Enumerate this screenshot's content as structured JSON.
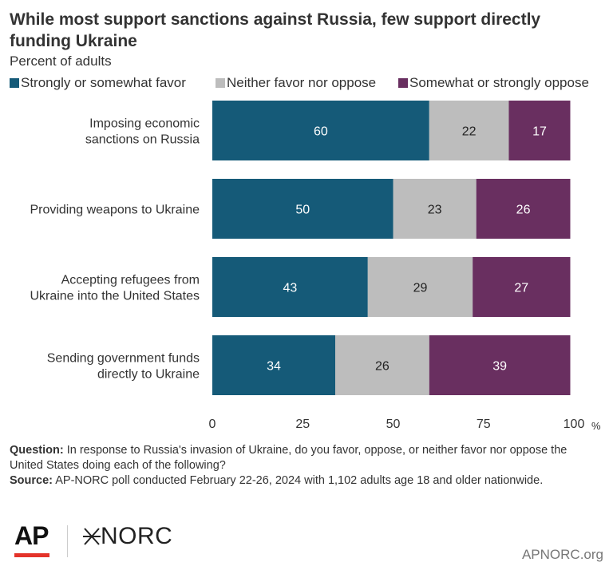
{
  "title": "While most support sanctions against Russia, few support directly funding Ukraine",
  "subtitle": "Percent of adults",
  "legend": [
    {
      "label": "Strongly or somewhat favor",
      "color": "#155a78"
    },
    {
      "label": "Neither favor nor oppose",
      "color": "#bdbdbd"
    },
    {
      "label": "Somewhat or strongly oppose",
      "color": "#692f60"
    }
  ],
  "chart_data": {
    "type": "bar",
    "orientation": "horizontal",
    "stacked": true,
    "categories": [
      [
        "Imposing economic",
        "sanctions on Russia"
      ],
      [
        "Providing weapons to Ukraine"
      ],
      [
        "Accepting refugees from",
        "Ukraine into the United States"
      ],
      [
        "Sending government funds",
        "directly to Ukraine"
      ]
    ],
    "series": [
      {
        "name": "Strongly or somewhat favor",
        "values": [
          60,
          50,
          43,
          34
        ],
        "color": "#155a78",
        "label_color": "#ffffff"
      },
      {
        "name": "Neither favor nor oppose",
        "values": [
          22,
          23,
          29,
          26
        ],
        "color": "#bdbdbd",
        "label_color": "#222222"
      },
      {
        "name": "Somewhat or strongly oppose",
        "values": [
          17,
          26,
          27,
          39
        ],
        "color": "#692f60",
        "label_color": "#ffffff"
      }
    ],
    "xlim": [
      0,
      100
    ],
    "xticks": [
      0,
      25,
      50,
      75,
      100
    ],
    "x_unit": "%",
    "grid": false,
    "legend_position": "top"
  },
  "notes": {
    "question_label": "Question:",
    "question_text": " In response to Russia's invasion of Ukraine, do you favor, oppose, or neither favor nor oppose the United States doing each of the following?",
    "source_label": "Source:",
    "source_text": " AP-NORC poll conducted February 22-26, 2024 with 1,102 adults age 18 and older nationwide."
  },
  "logos": {
    "ap": "AP",
    "norc": "NORC"
  },
  "footer": {
    "site": "APNORC.org"
  }
}
